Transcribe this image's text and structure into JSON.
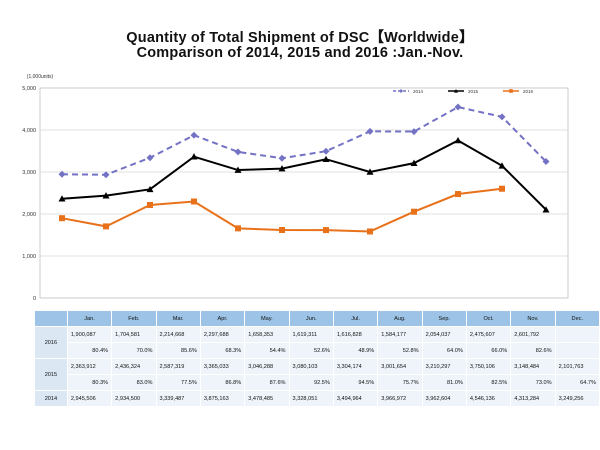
{
  "title_line1": "Quantity of Total Shipment of DSC【Worldwide】",
  "title_line2": "Comparison of 2014, 2015 and 2016 :Jan.-Nov.",
  "chart_data": {
    "type": "line",
    "unit_label": "(1,000units)",
    "categories": [
      "Jan.",
      "Feb.",
      "Mar.",
      "Apr.",
      "May.",
      "Jun.",
      "Jul.",
      "Aug.",
      "Sep.",
      "Oct.",
      "Nov.",
      "Dec."
    ],
    "ylim": [
      0,
      5000
    ],
    "yticks": [
      0,
      1000,
      2000,
      3000,
      4000,
      5000
    ],
    "ytick_labels": [
      "0",
      "1,000",
      "2,000",
      "3,000",
      "4,000",
      "5,000"
    ],
    "grid": true,
    "legend_position": "top-right",
    "series": [
      {
        "name": "2014",
        "color": "#7472c4",
        "style": "dashed",
        "marker": "diamond",
        "values": [
          2945.506,
          2934.5,
          3339.487,
          3875.163,
          3478.485,
          3328.051,
          3494.964,
          3966.972,
          3962.604,
          4546.136,
          4313.284,
          3249.256
        ]
      },
      {
        "name": "2015",
        "color": "#000000",
        "style": "solid",
        "marker": "triangle",
        "values": [
          2363.912,
          2436.324,
          2587.319,
          3365.033,
          3046.288,
          3080.103,
          3304.174,
          3001.654,
          3210.297,
          3750.106,
          3148.484,
          2101.763
        ]
      },
      {
        "name": "2016",
        "color": "#e8711a",
        "style": "solid",
        "marker": "square",
        "values": [
          1900.087,
          1704.581,
          2214.668,
          2297.688,
          1658.353,
          1619.311,
          1616.828,
          1584.177,
          2054.037,
          2475.607,
          2601.792,
          null
        ]
      }
    ]
  },
  "table": {
    "months": [
      "Jan.",
      "Feb.",
      "Mar.",
      "Apr.",
      "May.",
      "Jun.",
      "Jul.",
      "Aug.",
      "Sep.",
      "Oct.",
      "Nov.",
      "Dec."
    ],
    "rows": [
      {
        "year": "2016",
        "values": [
          "1,900,087",
          "1,704,581",
          "2,214,668",
          "2,297,688",
          "1,658,353",
          "1,619,311",
          "1,616,828",
          "1,584,177",
          "2,054,037",
          "2,475,607",
          "2,601,792",
          ""
        ],
        "percents": [
          "80.4%",
          "70.0%",
          "85.6%",
          "68.3%",
          "54.4%",
          "52.6%",
          "48.9%",
          "52.8%",
          "64.0%",
          "66.0%",
          "82.6%",
          ""
        ]
      },
      {
        "year": "2015",
        "values": [
          "2,363,912",
          "2,436,324",
          "2,587,319",
          "3,365,033",
          "3,046,288",
          "3,080,103",
          "3,304,174",
          "3,001,654",
          "3,210,297",
          "3,750,106",
          "3,148,484",
          "2,101,763"
        ],
        "percents": [
          "80.3%",
          "83.0%",
          "77.5%",
          "86.8%",
          "87.6%",
          "92.5%",
          "94.5%",
          "75.7%",
          "81.0%",
          "82.5%",
          "73.0%",
          "64.7%"
        ]
      },
      {
        "year": "2014",
        "values": [
          "2,945,506",
          "2,934,500",
          "3,339,487",
          "3,875,163",
          "3,478,485",
          "3,328,051",
          "3,494,964",
          "3,966,972",
          "3,962,604",
          "4,546,136",
          "4,313,284",
          "3,249,256"
        ]
      }
    ]
  }
}
